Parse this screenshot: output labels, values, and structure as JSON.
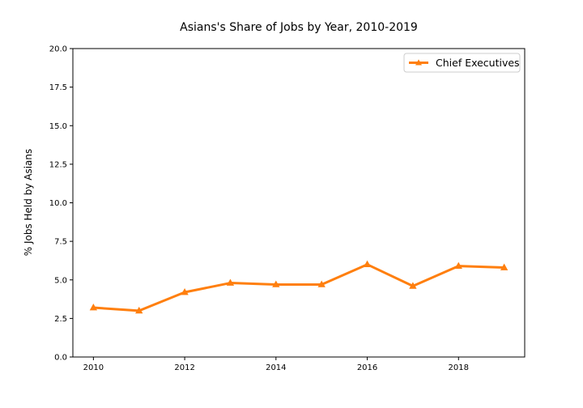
{
  "chart_data": {
    "type": "line",
    "title": "Asians's Share of Jobs by Year, 2010-2019",
    "xlabel": "",
    "ylabel": "% Jobs Held by Asians",
    "x": [
      2010,
      2011,
      2012,
      2013,
      2014,
      2015,
      2016,
      2017,
      2018,
      2019
    ],
    "series": [
      {
        "name": "Chief Executives",
        "values": [
          3.2,
          3.0,
          4.2,
          4.8,
          4.7,
          4.7,
          6.0,
          4.6,
          5.9,
          5.8
        ],
        "color": "#ff7f0e",
        "marker": "triangle"
      }
    ],
    "xlim": [
      2009.55,
      2019.45
    ],
    "ylim": [
      0,
      20
    ],
    "xticks": [
      "2010",
      "2012",
      "2014",
      "2016",
      "2018"
    ],
    "yticks": [
      "0.0",
      "2.5",
      "5.0",
      "7.5",
      "10.0",
      "12.5",
      "15.0",
      "17.5",
      "20.0"
    ],
    "grid": false,
    "legend_position": "upper right"
  }
}
